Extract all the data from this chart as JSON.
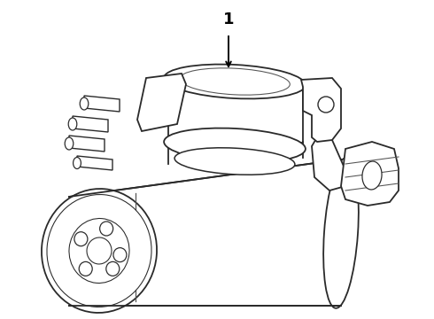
{
  "background_color": "#ffffff",
  "line_color": "#2a2a2a",
  "line_color_light": "#555555",
  "label_color": "#000000",
  "line_width": 1.3,
  "label": "1",
  "figsize": [
    4.9,
    3.6
  ],
  "dpi": 100
}
